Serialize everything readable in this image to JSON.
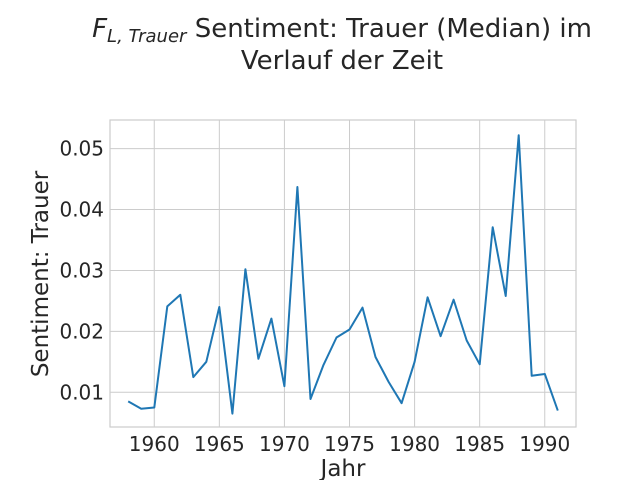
{
  "chart_data": {
    "type": "line",
    "title_math": "F",
    "title_math_sub": "L, Trauer",
    "title_line1": " Sentiment: Trauer (Median) im",
    "title_line2": "Verlauf der Zeit",
    "xlabel": "Jahr",
    "ylabel": "Sentiment: Trauer",
    "xlim": [
      1956.6,
      1992.4
    ],
    "ylim": [
      0.0043,
      0.0547
    ],
    "xticks": [
      1960,
      1965,
      1970,
      1975,
      1980,
      1985,
      1990
    ],
    "yticks": [
      0.01,
      0.02,
      0.03,
      0.04,
      0.05
    ],
    "ytick_labels": [
      "0.01",
      "0.02",
      "0.03",
      "0.04",
      "0.05"
    ],
    "grid": true,
    "color": "#1f77b4",
    "series": [
      {
        "x": [
          1958,
          1959,
          1960,
          1961,
          1962,
          1963,
          1964,
          1965,
          1966,
          1967,
          1968,
          1969,
          1970,
          1971,
          1972,
          1973,
          1974,
          1975,
          1976,
          1977,
          1978,
          1979,
          1980,
          1981,
          1982,
          1983,
          1984,
          1985,
          1986,
          1987,
          1988,
          1989,
          1990,
          1991
        ],
        "y": [
          0.0085,
          0.0073,
          0.0075,
          0.0241,
          0.026,
          0.0125,
          0.015,
          0.024,
          0.0065,
          0.0302,
          0.0155,
          0.0221,
          0.011,
          0.0437,
          0.0089,
          0.0145,
          0.019,
          0.0203,
          0.0239,
          0.0158,
          0.0117,
          0.0082,
          0.015,
          0.0256,
          0.0192,
          0.0252,
          0.0185,
          0.0146,
          0.0371,
          0.0258,
          0.0522,
          0.0127,
          0.013,
          0.007
        ]
      }
    ]
  }
}
